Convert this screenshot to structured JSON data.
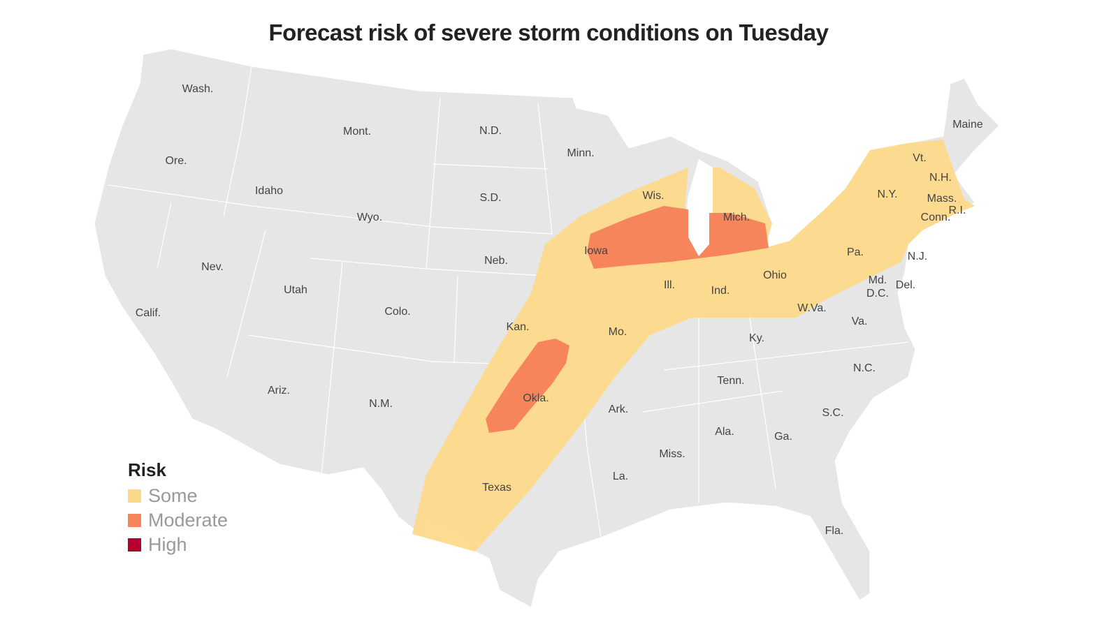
{
  "title": "Forecast risk of severe storm conditions on Tuesday",
  "legend": {
    "title": "Risk",
    "items": [
      {
        "label": "Some",
        "color": "#fdd98a"
      },
      {
        "label": "Moderate",
        "color": "#f7855c"
      },
      {
        "label": "High",
        "color": "#b5002f"
      }
    ]
  },
  "colors": {
    "land": "#e6e6e6",
    "border": "#ffffff",
    "water": "#ffffff"
  },
  "states": [
    "Wash.",
    "Ore.",
    "Calif.",
    "Idaho",
    "Nev.",
    "Mont.",
    "Wyo.",
    "Utah",
    "Ariz.",
    "Colo.",
    "N.M.",
    "N.D.",
    "S.D.",
    "Neb.",
    "Kan.",
    "Okla.",
    "Texas",
    "Minn.",
    "Iowa",
    "Mo.",
    "Ark.",
    "La.",
    "Wis.",
    "Ill.",
    "Mich.",
    "Ind.",
    "Ohio",
    "Ky.",
    "Tenn.",
    "Miss.",
    "Ala.",
    "Ga.",
    "Fla.",
    "S.C.",
    "N.C.",
    "Va.",
    "W.Va.",
    "Pa.",
    "N.Y.",
    "Md.",
    "D.C.",
    "Del.",
    "N.J.",
    "Conn.",
    "R.I.",
    "Mass.",
    "Vt.",
    "N.H.",
    "Maine"
  ]
}
